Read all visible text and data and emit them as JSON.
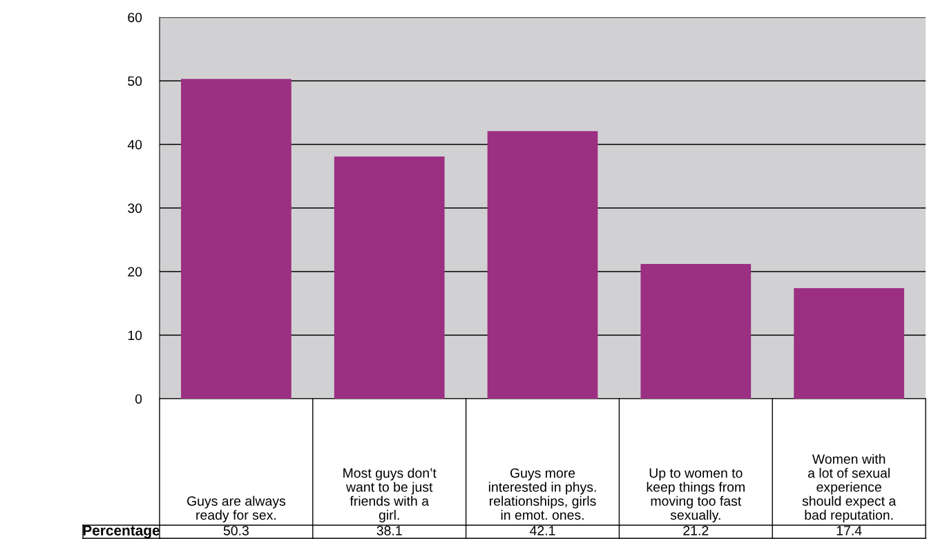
{
  "chart_data": {
    "type": "bar",
    "categories": [
      "Guys are always\nready for sex.",
      "Most guys don’t\nwant to be just\nfriends with a\ngirl.",
      "Guys more\ninterested in phys.\nrelationships, girls\nin emot. ones.",
      "Up to women to\nkeep things from\nmoving too fast\nsexually.",
      "Women with\na lot of sexual\nexperience\nshould expect a\nbad reputation."
    ],
    "values": [
      50.3,
      38.1,
      42.1,
      21.2,
      17.4
    ],
    "color": "#9b2f82",
    "ylim": [
      0,
      60
    ],
    "yticks": [
      0,
      10,
      20,
      30,
      40,
      50,
      60
    ],
    "grid": "y",
    "legend": false,
    "data_labels": true,
    "annotations": [
      "Percentage"
    ]
  }
}
